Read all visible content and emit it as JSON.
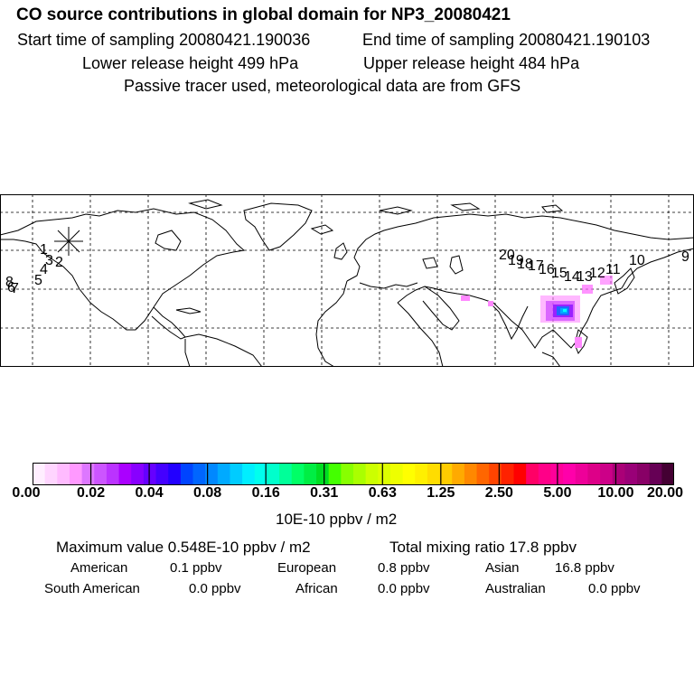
{
  "header": {
    "title": "CO  source contributions in global domain for NP3_20080421",
    "start_label": "Start time of sampling 20080421.190036",
    "end_label": "End time of sampling 20080421.190103",
    "lower_label": "Lower release height  499 hPa",
    "upper_label": "Upper release height  484 hPa",
    "tracer_note": "Passive tracer used, meteorological data are from GFS"
  },
  "map": {
    "point_labels": [
      "1",
      "2",
      "3",
      "4",
      "5",
      "6",
      "7",
      "8",
      "9",
      "10",
      "11",
      "12",
      "13",
      "14",
      "15",
      "16",
      "17",
      "18",
      "19",
      "20"
    ],
    "plume_colors": [
      "#ff00cc",
      "#cc00ff",
      "#9900ff",
      "#0066ff",
      "#00aaff",
      "#00ffff"
    ]
  },
  "colorbar": {
    "tick_labels": [
      "0.00",
      "0.02",
      "0.04",
      "0.08",
      "0.16",
      "0.31",
      "0.63",
      "1.25",
      "2.50",
      "5.00",
      "10.00",
      "20.00"
    ],
    "colors": [
      "#ffeeff",
      "#ffd5ff",
      "#ffbbff",
      "#ff99ff",
      "#dd77ff",
      "#cc55ff",
      "#bb33ff",
      "#aa00ff",
      "#8800ff",
      "#6600ff",
      "#4400ff",
      "#2200ff",
      "#0044ff",
      "#0066ff",
      "#0088ff",
      "#00aaff",
      "#00ccff",
      "#00eeff",
      "#00ffee",
      "#00ffcc",
      "#00ff99",
      "#00ff66",
      "#00ee44",
      "#00dd22",
      "#44ff00",
      "#88ff00",
      "#aaff00",
      "#ccff00",
      "#ddff00",
      "#eeff00",
      "#ffff00",
      "#fff000",
      "#ffdd00",
      "#ffcc00",
      "#ffaa00",
      "#ff8800",
      "#ff6600",
      "#ff4400",
      "#ff2200",
      "#ff0000",
      "#ff0066",
      "#ff0088",
      "#ff0099",
      "#ff00aa",
      "#ee0099",
      "#dd0088",
      "#cc0088",
      "#aa0077",
      "#990077",
      "#880066",
      "#660055",
      "#440033"
    ],
    "unit": "10E-10 ppbv / m2"
  },
  "stats": {
    "maximum_label": "Maximum value  0.548E-10 ppbv / m2",
    "total_label": "Total mixing ratio      17.8 ppbv",
    "american_label": "American",
    "american_value": "0.1 ppbv",
    "european_label": "European",
    "european_value": "0.8 ppbv",
    "asian_label": "Asian",
    "asian_value": "16.8 ppbv",
    "south_american_label": "South American",
    "south_american_value": "0.0 ppbv",
    "african_label": "African",
    "african_value": "0.0 ppbv",
    "australian_label": "Australian",
    "australian_value": "0.0 ppbv"
  }
}
